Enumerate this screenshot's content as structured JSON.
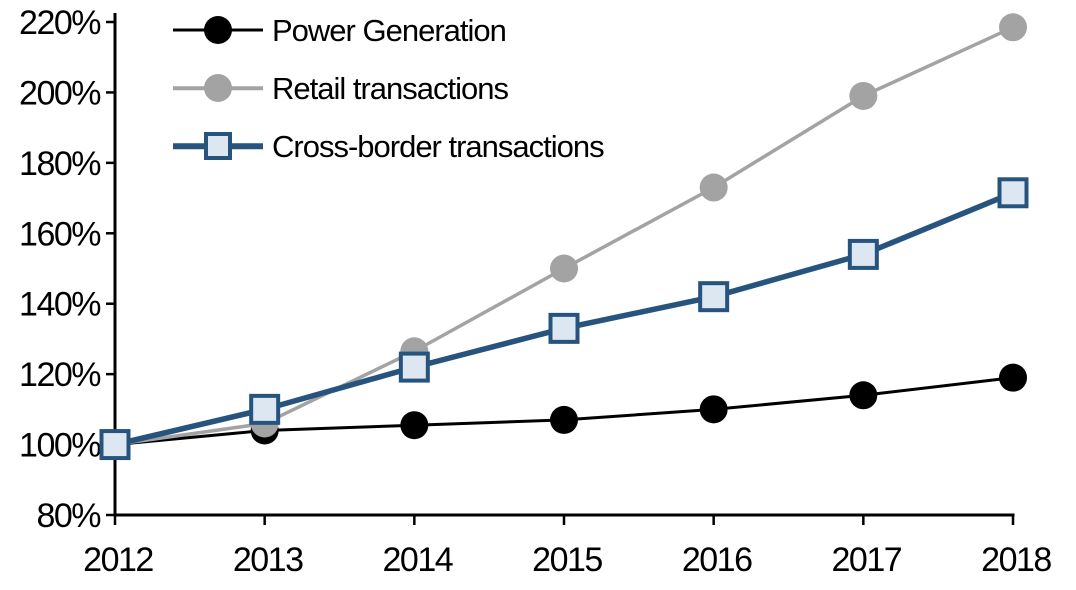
{
  "chart_data": {
    "type": "line",
    "title": "",
    "xlabel": "",
    "ylabel": "",
    "grid": false,
    "legend_position": "top-left",
    "x_tick_labels": [
      "2012",
      "2013",
      "2014",
      "2015",
      "2016",
      "2017",
      "2018"
    ],
    "y_tick_labels": [
      "80%",
      "100%",
      "120%",
      "140%",
      "160%",
      "180%",
      "200%",
      "220%"
    ],
    "y_ticks": [
      80,
      100,
      120,
      140,
      160,
      180,
      200,
      220
    ],
    "ylim": [
      80,
      220
    ],
    "categories": [
      "2012",
      "2013",
      "2014",
      "2015",
      "2016",
      "2017",
      "2018"
    ],
    "series": [
      {
        "name": "Power Generation",
        "marker": "circle",
        "color": "#000000",
        "marker_fill": "#000000",
        "line_width": 3,
        "values": [
          100,
          104,
          105.5,
          107,
          110,
          114,
          119
        ]
      },
      {
        "name": "Retail transactions",
        "marker": "circle",
        "color": "#A3A3A3",
        "marker_fill": "#A3A3A3",
        "line_width": 3.5,
        "values": [
          100,
          106,
          126.5,
          150,
          173,
          199,
          218.5
        ]
      },
      {
        "name": "Cross-border transactions",
        "marker": "square",
        "color": "#27547E",
        "marker_fill": "#DCE7F2",
        "line_width": 5.5,
        "values": [
          100,
          110,
          122,
          133,
          142,
          154,
          171.5
        ]
      }
    ]
  },
  "colors": {
    "axis": "#000000",
    "background": "#FFFFFF"
  }
}
